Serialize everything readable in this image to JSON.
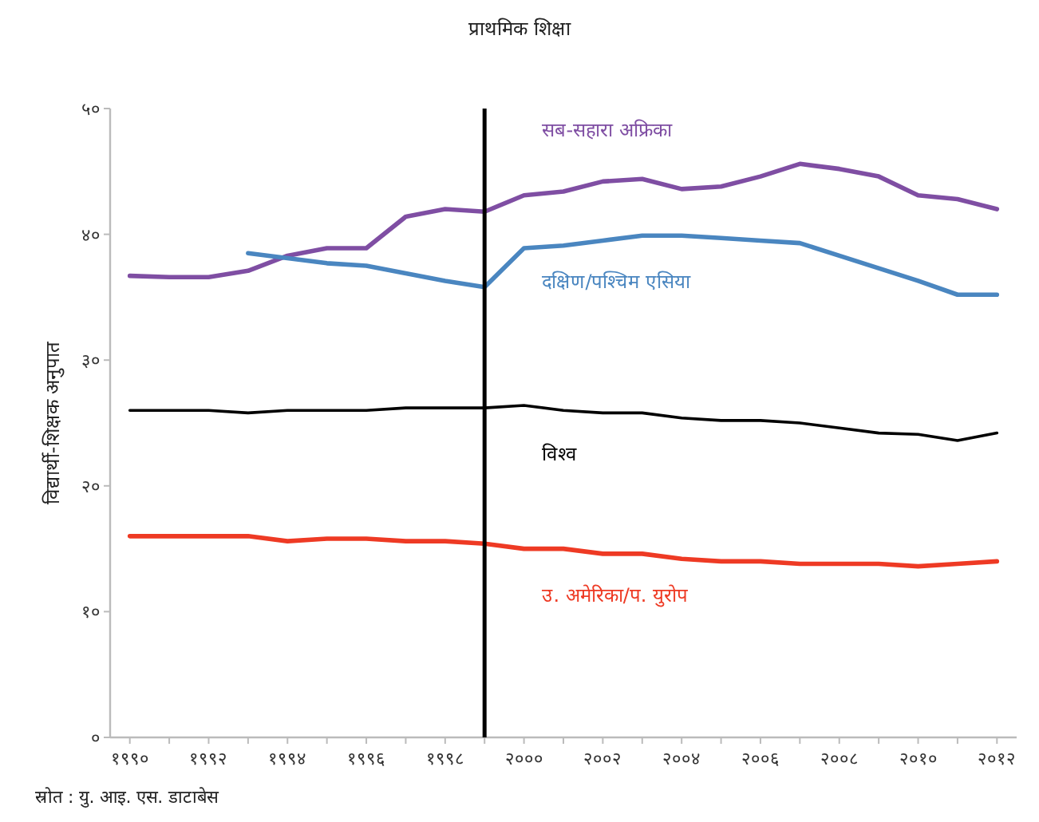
{
  "chart_data": {
    "type": "line",
    "title": "प्राथमिक शिक्षा",
    "ylabel": "विद्यार्थी-शिक्षक अनुपात",
    "annotations": [
      "स्रोत : यु. आइ. एस. डाटाबेस"
    ],
    "x": [
      1990,
      1991,
      1992,
      1993,
      1994,
      1995,
      1996,
      1997,
      1998,
      1999,
      2000,
      2001,
      2002,
      2003,
      2004,
      2005,
      2006,
      2007,
      2008,
      2009,
      2010,
      2011,
      2012
    ],
    "series": [
      {
        "name": "सब-सहारा अफ्रिका",
        "color": "#7f4ea3",
        "values": [
          36.7,
          36.6,
          36.6,
          37.1,
          38.3,
          38.9,
          38.9,
          41.4,
          42.0,
          41.8,
          43.1,
          43.4,
          44.2,
          44.4,
          43.6,
          43.8,
          44.6,
          45.6,
          45.2,
          44.6,
          43.1,
          42.8,
          42.0
        ]
      },
      {
        "name": "दक्षिण/पश्चिम एसिया",
        "color": "#4a86c0",
        "values": [
          null,
          null,
          null,
          38.5,
          38.1,
          37.7,
          37.5,
          36.9,
          36.3,
          35.8,
          38.9,
          39.1,
          39.5,
          39.9,
          39.9,
          39.7,
          39.5,
          39.3,
          38.3,
          37.3,
          36.3,
          35.2,
          35.2
        ]
      },
      {
        "name": "विश्व",
        "color": "#000000",
        "values": [
          26.0,
          26.0,
          26.0,
          25.8,
          26.0,
          26.0,
          26.0,
          26.2,
          26.2,
          26.2,
          26.4,
          26.0,
          25.8,
          25.8,
          25.4,
          25.2,
          25.2,
          25.0,
          24.6,
          24.2,
          24.1,
          23.6,
          24.2
        ]
      },
      {
        "name": "उ. अमेरिका/प. युरोप",
        "color": "#ee3a24",
        "values": [
          16.0,
          16.0,
          16.0,
          16.0,
          15.6,
          15.8,
          15.8,
          15.6,
          15.6,
          15.4,
          15.0,
          15.0,
          14.6,
          14.6,
          14.2,
          14.0,
          14.0,
          13.8,
          13.8,
          13.8,
          13.6,
          13.8,
          14.0
        ]
      }
    ],
    "ref_lines": [
      {
        "axis": "x",
        "value": 1999,
        "color": "#000000"
      }
    ],
    "xlim": [
      1989.5,
      2012.5
    ],
    "xticks": [
      {
        "value": 1990,
        "label": "१९९०"
      },
      {
        "value": 1991,
        "label": null
      },
      {
        "value": 1992,
        "label": "१९९२"
      },
      {
        "value": 1993,
        "label": null
      },
      {
        "value": 1994,
        "label": "१९९४"
      },
      {
        "value": 1995,
        "label": null
      },
      {
        "value": 1996,
        "label": "१९९६"
      },
      {
        "value": 1997,
        "label": null
      },
      {
        "value": 1998,
        "label": "१९९८"
      },
      {
        "value": 1999,
        "label": null
      },
      {
        "value": 2000,
        "label": "२०००"
      },
      {
        "value": 2001,
        "label": null
      },
      {
        "value": 2002,
        "label": "२००२"
      },
      {
        "value": 2003,
        "label": null
      },
      {
        "value": 2004,
        "label": "२००४"
      },
      {
        "value": 2005,
        "label": null
      },
      {
        "value": 2006,
        "label": "२००६"
      },
      {
        "value": 2007,
        "label": null
      },
      {
        "value": 2008,
        "label": "२००८"
      },
      {
        "value": 2009,
        "label": null
      },
      {
        "value": 2010,
        "label": "२०१०"
      },
      {
        "value": 2011,
        "label": null
      },
      {
        "value": 2012,
        "label": "२०१२"
      }
    ],
    "ylim": [
      0,
      50
    ],
    "yticks": [
      {
        "value": 0,
        "label": "०"
      },
      {
        "value": 10,
        "label": "१०"
      },
      {
        "value": 20,
        "label": "२०"
      },
      {
        "value": 30,
        "label": "३०"
      },
      {
        "value": 40,
        "label": "४०"
      },
      {
        "value": 50,
        "label": "५०"
      }
    ],
    "grid": false,
    "marker": "none",
    "line_style": "solid"
  }
}
